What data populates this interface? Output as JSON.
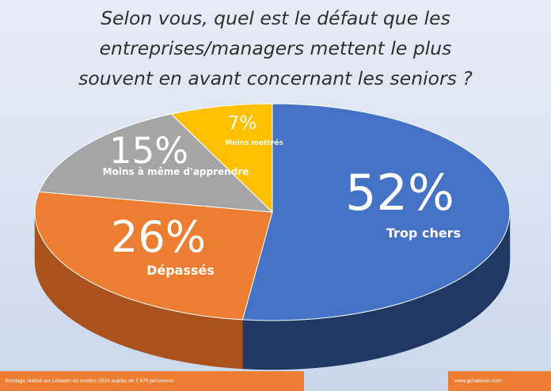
{
  "title_lines": [
    "Selon vous, quel est le défaut que les",
    "entreprises/managers mettent le plus",
    "souvent en avant concernant les seniors ?"
  ],
  "chart_data": {
    "type": "pie",
    "style": "3d",
    "slices": [
      {
        "label": "Trop chers",
        "value": 52,
        "display": "52%",
        "color": "#4472c4",
        "side_color": "#1f3864"
      },
      {
        "label": "Dépassés",
        "value": 26,
        "display": "26%",
        "color": "#ed7d31",
        "side_color": "#a9521b"
      },
      {
        "label": "Moins à même d'apprendre",
        "value": 15,
        "display": "15%",
        "color": "#a5a5a5",
        "side_color": "#6f6f6f"
      },
      {
        "label": "Moins motivés",
        "value": 7,
        "display": "7%",
        "color": "#ffc000",
        "side_color": "#b78600"
      }
    ]
  },
  "footer": {
    "source": "Sondage réalisé sur Linkedin en octobre  2024  auprès de  2 870  personnes",
    "website": "www.gchatelain.com"
  }
}
